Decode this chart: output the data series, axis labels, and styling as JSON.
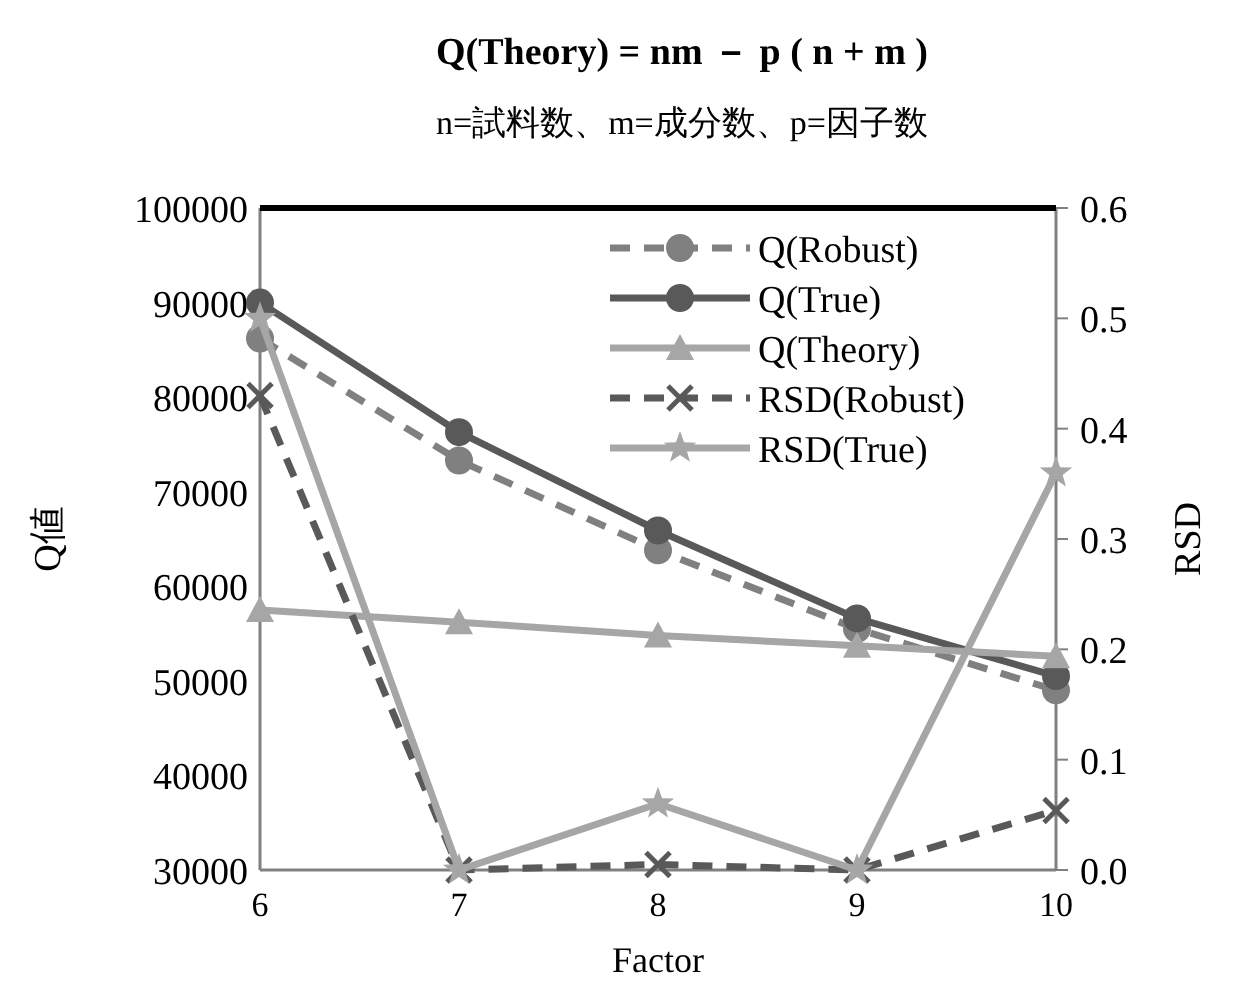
{
  "chart_data": {
    "type": "line",
    "title": "Q(Theory) = nm － p ( n + m )",
    "subtitle": "n=試料数、m=成分数、p=因子数",
    "xlabel": "Factor",
    "ylabel": "Q値",
    "y2label": "RSD",
    "x": [
      6,
      7,
      8,
      9,
      10
    ],
    "xlim": [
      6,
      10
    ],
    "xticks": [
      6,
      7,
      8,
      9,
      10
    ],
    "ylim": [
      30000,
      100000
    ],
    "yticks": [
      30000,
      40000,
      50000,
      60000,
      70000,
      80000,
      90000,
      100000
    ],
    "y2lim": [
      0,
      0.6
    ],
    "y2ticks": [
      {
        "value": 0,
        "label": "0.0"
      },
      0.1,
      0.2,
      0.3,
      0.4,
      0.5,
      0.6
    ],
    "grid": false,
    "legend": "top right",
    "series": [
      {
        "name": "Q(Robust)",
        "color": "#808080",
        "marker": "circle",
        "line_style": "dashed",
        "values": [
          86200,
          73300,
          63800,
          55500,
          49000
        ]
      },
      {
        "name": "Q(True)",
        "color": "#595959",
        "marker": "circle",
        "line_style": "solid",
        "values": [
          90000,
          76300,
          65900,
          56600,
          50500
        ]
      },
      {
        "name": "Q(Theory)",
        "color": "#a6a6a6",
        "marker": "triangle",
        "line_style": "solid",
        "values": [
          57500,
          56200,
          54800,
          53700,
          52600
        ]
      },
      {
        "name": "RSD(Robust)",
        "color": "#595959",
        "marker": "cross",
        "line_style": "dashed",
        "axis": "y2",
        "values": [
          0.43,
          0.0,
          0.005,
          0.0,
          0.054
        ]
      },
      {
        "name": "RSD(True)",
        "color": "#a6a6a6",
        "marker": "star",
        "line_style": "solid",
        "axis": "y2",
        "values": [
          0.5,
          0.0,
          0.06,
          0.0,
          0.36
        ]
      }
    ]
  }
}
